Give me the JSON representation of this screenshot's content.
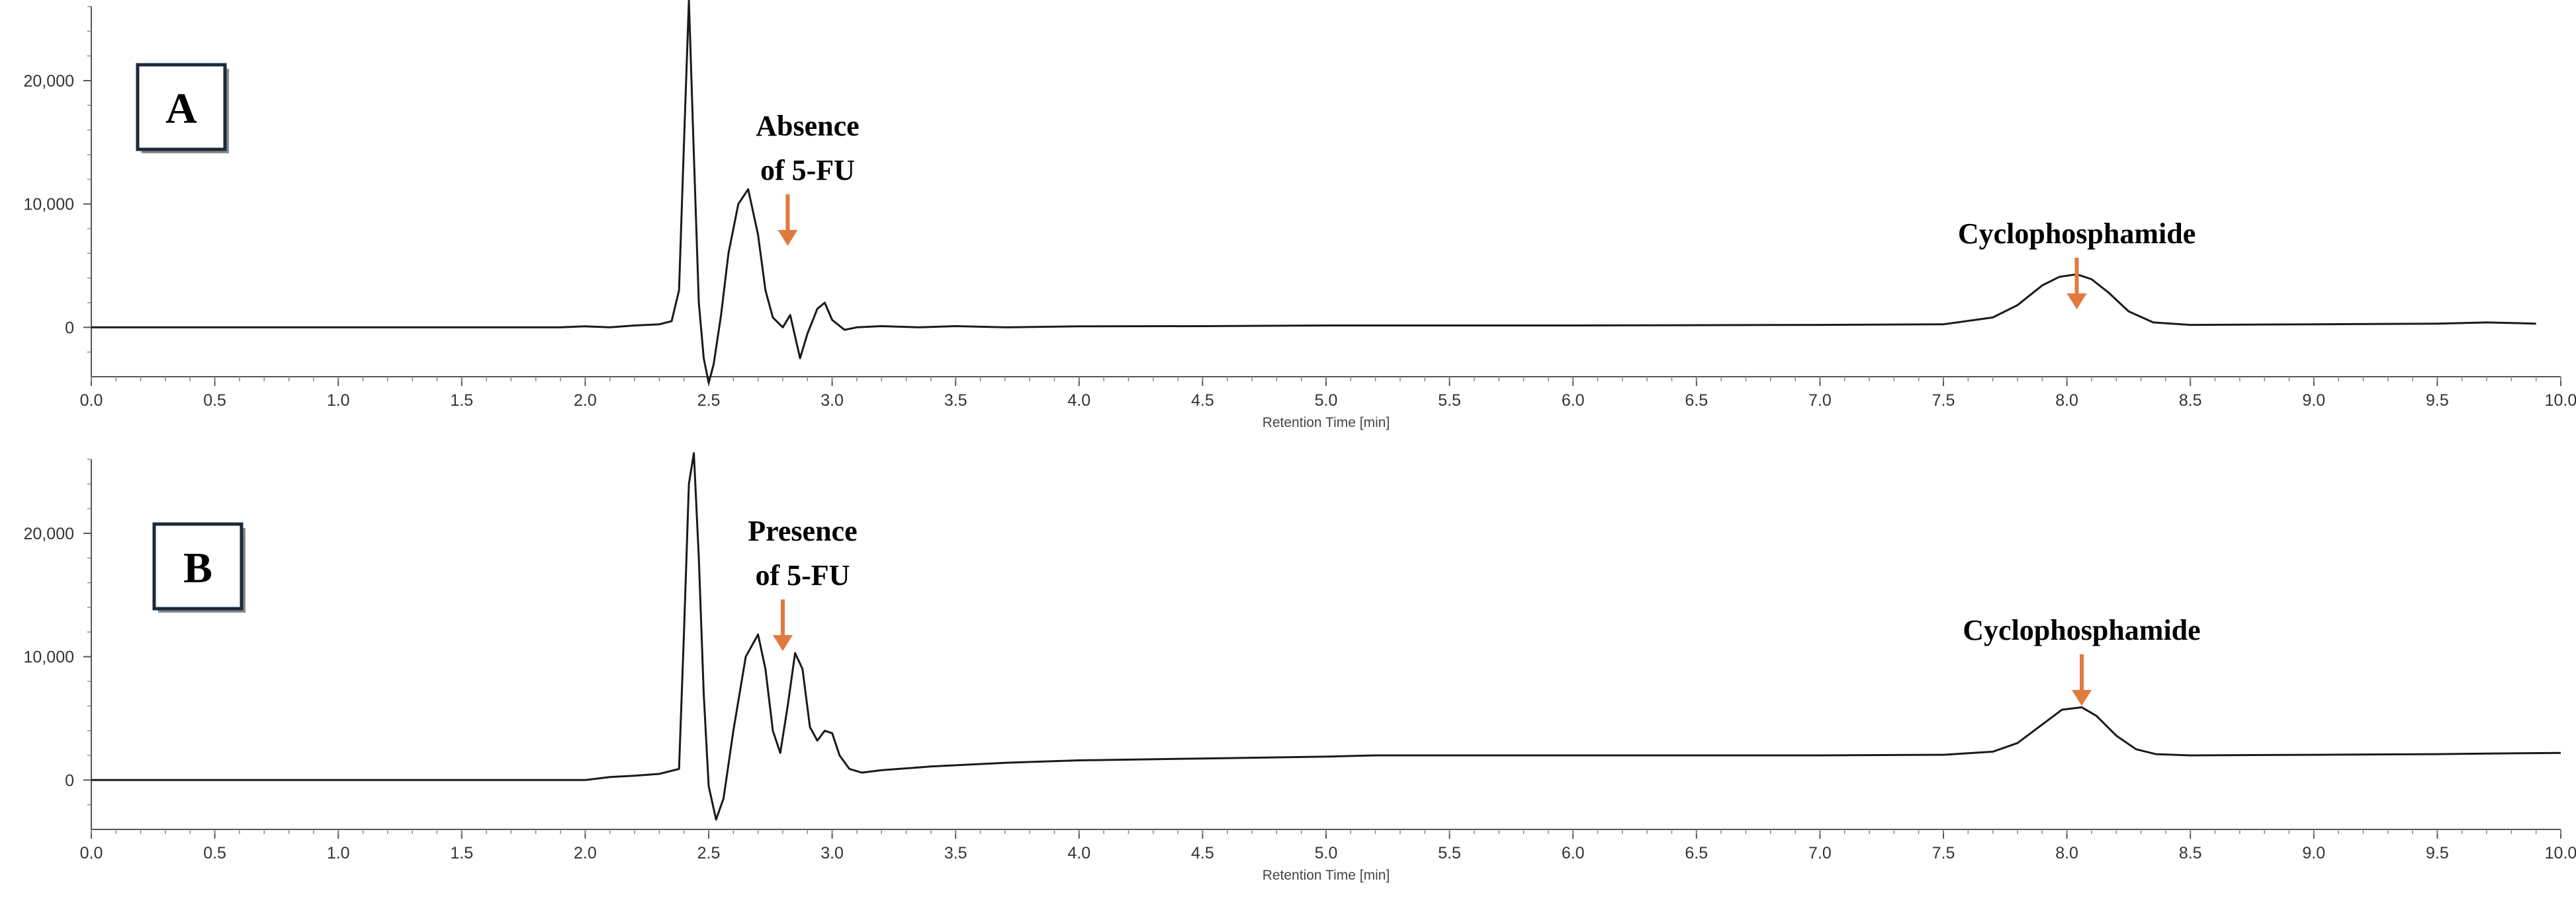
{
  "chart_data": [
    {
      "type": "line",
      "panel_label": "A",
      "xlabel": "Retention Time [min]",
      "ylabel": "",
      "xlim": [
        0.0,
        10.0
      ],
      "ylim": [
        -4000,
        26000
      ],
      "x_ticks": [
        "0.0",
        "0.5",
        "1.0",
        "1.5",
        "2.0",
        "2.5",
        "3.0",
        "3.5",
        "4.0",
        "4.5",
        "5.0",
        "5.5",
        "6.0",
        "6.5",
        "7.0",
        "7.5",
        "8.0",
        "8.5",
        "9.0",
        "9.5",
        "10.0"
      ],
      "y_ticks": [
        {
          "value": 0,
          "label": "0"
        },
        {
          "value": 10000,
          "label": "10,000"
        },
        {
          "value": 20000,
          "label": "20,000"
        }
      ],
      "grid": false,
      "series": [
        {
          "color": "#1a1a1a",
          "x": [
            0.0,
            1.9,
            2.0,
            2.1,
            2.2,
            2.3,
            2.35,
            2.38,
            2.4,
            2.42,
            2.44,
            2.46,
            2.48,
            2.5,
            2.52,
            2.55,
            2.58,
            2.62,
            2.66,
            2.7,
            2.73,
            2.76,
            2.8,
            2.83,
            2.87,
            2.9,
            2.94,
            2.97,
            3.0,
            3.05,
            3.1,
            3.2,
            3.35,
            3.5,
            3.7,
            4.0,
            4.5,
            5.0,
            6.0,
            7.0,
            7.5,
            7.7,
            7.8,
            7.9,
            7.97,
            8.04,
            8.1,
            8.17,
            8.25,
            8.35,
            8.5,
            9.0,
            9.5,
            9.7,
            9.9
          ],
          "y": [
            0,
            0,
            80,
            0,
            150,
            250,
            500,
            3000,
            15000,
            26500,
            14000,
            2000,
            -2500,
            -4500,
            -3000,
            1000,
            6000,
            10000,
            11200,
            7500,
            3000,
            800,
            0,
            1000,
            -2500,
            -500,
            1500,
            2000,
            600,
            -200,
            0,
            100,
            0,
            100,
            0,
            80,
            100,
            150,
            150,
            200,
            250,
            800,
            1800,
            3400,
            4100,
            4300,
            3900,
            2800,
            1300,
            400,
            200,
            250,
            300,
            400,
            300
          ]
        }
      ],
      "annotations": [
        {
          "lines": [
            "Absence",
            "of 5-FU"
          ],
          "arrow_x": 2.82,
          "arrow_color": "#e07a3c"
        },
        {
          "lines": [
            "Cyclophosphamide"
          ],
          "arrow_x": 8.04,
          "arrow_color": "#e07a3c"
        }
      ]
    },
    {
      "type": "line",
      "panel_label": "B",
      "xlabel": "Retention Time [min]",
      "ylabel": "",
      "xlim": [
        0.0,
        10.0
      ],
      "ylim": [
        -4000,
        26000
      ],
      "x_ticks": [
        "0.0",
        "0.5",
        "1.0",
        "1.5",
        "2.0",
        "2.5",
        "3.0",
        "3.5",
        "4.0",
        "4.5",
        "5.0",
        "5.5",
        "6.0",
        "6.5",
        "7.0",
        "7.5",
        "8.0",
        "8.5",
        "9.0",
        "9.5",
        "10.0"
      ],
      "y_ticks": [
        {
          "value": 0,
          "label": "0"
        },
        {
          "value": 10000,
          "label": "10,000"
        },
        {
          "value": 20000,
          "label": "20,000"
        }
      ],
      "grid": false,
      "series": [
        {
          "color": "#1a1a1a",
          "x": [
            0.0,
            2.0,
            2.1,
            2.2,
            2.3,
            2.38,
            2.4,
            2.42,
            2.44,
            2.46,
            2.48,
            2.5,
            2.53,
            2.56,
            2.6,
            2.65,
            2.7,
            2.73,
            2.76,
            2.79,
            2.82,
            2.85,
            2.88,
            2.91,
            2.94,
            2.97,
            3.0,
            3.03,
            3.07,
            3.12,
            3.2,
            3.4,
            3.7,
            4.0,
            4.5,
            5.0,
            5.1,
            5.2,
            6.0,
            7.0,
            7.5,
            7.7,
            7.8,
            7.9,
            7.98,
            8.06,
            8.12,
            8.2,
            8.28,
            8.36,
            8.5,
            9.0,
            9.5,
            9.7,
            10.0
          ],
          "y": [
            0,
            0,
            250,
            350,
            500,
            900,
            12000,
            24000,
            26500,
            18000,
            7000,
            -500,
            -3200,
            -1500,
            4000,
            10000,
            11800,
            9000,
            4000,
            2200,
            6000,
            10300,
            9000,
            4300,
            3200,
            4000,
            3800,
            2000,
            900,
            600,
            800,
            1100,
            1400,
            1600,
            1750,
            1900,
            1950,
            2000,
            2000,
            2000,
            2050,
            2300,
            3000,
            4500,
            5700,
            5900,
            5200,
            3600,
            2500,
            2100,
            2000,
            2050,
            2100,
            2150,
            2200
          ]
        }
      ],
      "annotations": [
        {
          "lines": [
            "Presence",
            "of 5-FU"
          ],
          "arrow_x": 2.8,
          "arrow_color": "#e07a3c"
        },
        {
          "lines": [
            "Cyclophosphamide"
          ],
          "arrow_x": 8.06,
          "arrow_color": "#e07a3c"
        }
      ]
    }
  ]
}
